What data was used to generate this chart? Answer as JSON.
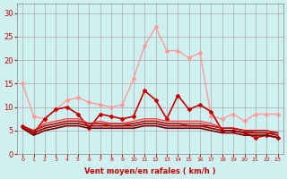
{
  "xlabel": "Vent moyen/en rafales ( km/h )",
  "ylabel": "",
  "background_color": "#cff0f0",
  "grid_color": "#aaaaaa",
  "x": [
    0,
    1,
    2,
    3,
    4,
    5,
    6,
    7,
    8,
    9,
    10,
    11,
    12,
    13,
    14,
    15,
    16,
    17,
    18,
    19,
    20,
    21,
    22,
    23
  ],
  "lines": [
    {
      "y": [
        15.0,
        8.0,
        7.5,
        9.5,
        11.5,
        12.0,
        11.0,
        10.5,
        10.0,
        10.5,
        16.0,
        23.0,
        27.0,
        22.0,
        22.0,
        20.5,
        21.5,
        8.0,
        7.5,
        8.5,
        7.0,
        8.5,
        8.5,
        8.5
      ],
      "color": "#ff9999",
      "lw": 1.0,
      "marker": "D",
      "ms": 2
    },
    {
      "y": [
        6.0,
        4.5,
        7.5,
        9.5,
        10.0,
        8.5,
        5.5,
        8.5,
        8.0,
        7.5,
        8.0,
        13.5,
        11.5,
        7.5,
        12.5,
        9.5,
        10.5,
        9.0,
        5.0,
        5.0,
        4.5,
        3.5,
        4.0,
        3.5
      ],
      "color": "#cc0000",
      "lw": 1.2,
      "marker": "D",
      "ms": 2
    },
    {
      "y": [
        5.5,
        5.0,
        6.5,
        7.0,
        7.5,
        7.5,
        6.5,
        7.0,
        6.5,
        6.5,
        7.0,
        7.5,
        7.5,
        7.0,
        7.0,
        7.0,
        7.0,
        6.5,
        5.5,
        5.5,
        5.0,
        5.0,
        5.0,
        4.5
      ],
      "color": "#ff4444",
      "lw": 1.0,
      "marker": null,
      "ms": 0
    },
    {
      "y": [
        5.5,
        5.0,
        6.0,
        6.5,
        7.0,
        7.0,
        6.5,
        6.5,
        6.5,
        6.5,
        6.5,
        7.0,
        7.0,
        6.5,
        6.5,
        6.5,
        6.5,
        6.0,
        5.5,
        5.5,
        5.0,
        4.5,
        4.5,
        4.5
      ],
      "color": "#dd2222",
      "lw": 1.0,
      "marker": null,
      "ms": 0
    },
    {
      "y": [
        6.0,
        5.0,
        6.0,
        6.5,
        7.0,
        7.0,
        6.5,
        6.5,
        6.0,
        6.0,
        6.5,
        7.0,
        7.0,
        6.5,
        6.5,
        6.0,
        6.0,
        6.0,
        5.5,
        5.5,
        5.0,
        5.0,
        5.0,
        4.5
      ],
      "color": "#bb1111",
      "lw": 1.0,
      "marker": null,
      "ms": 0
    },
    {
      "y": [
        5.5,
        4.5,
        5.5,
        6.0,
        6.5,
        6.5,
        6.0,
        6.0,
        6.0,
        6.0,
        6.0,
        6.5,
        6.5,
        6.0,
        6.0,
        6.0,
        6.0,
        5.5,
        5.0,
        5.0,
        4.5,
        4.5,
        4.5,
        4.0
      ],
      "color": "#990000",
      "lw": 1.2,
      "marker": null,
      "ms": 0
    },
    {
      "y": [
        5.5,
        4.0,
        5.0,
        5.5,
        6.0,
        6.0,
        5.5,
        5.5,
        5.5,
        5.5,
        5.5,
        6.0,
        6.0,
        5.5,
        5.5,
        5.5,
        5.5,
        5.0,
        4.5,
        4.5,
        4.0,
        4.0,
        4.0,
        3.5
      ],
      "color": "#770000",
      "lw": 1.2,
      "marker": null,
      "ms": 0
    }
  ],
  "ylim": [
    0,
    32
  ],
  "yticks": [
    0,
    5,
    10,
    15,
    20,
    25,
    30
  ],
  "xlim": [
    -0.5,
    23.5
  ],
  "xticks": [
    0,
    1,
    2,
    3,
    4,
    5,
    6,
    7,
    8,
    9,
    10,
    11,
    12,
    13,
    14,
    15,
    16,
    17,
    18,
    19,
    20,
    21,
    22,
    23
  ],
  "xlabel_color": "#cc0000",
  "ytick_color": "#cc0000",
  "xtick_color": "#cc0000",
  "spine_color": "#888888",
  "title_color": "#cc0000"
}
